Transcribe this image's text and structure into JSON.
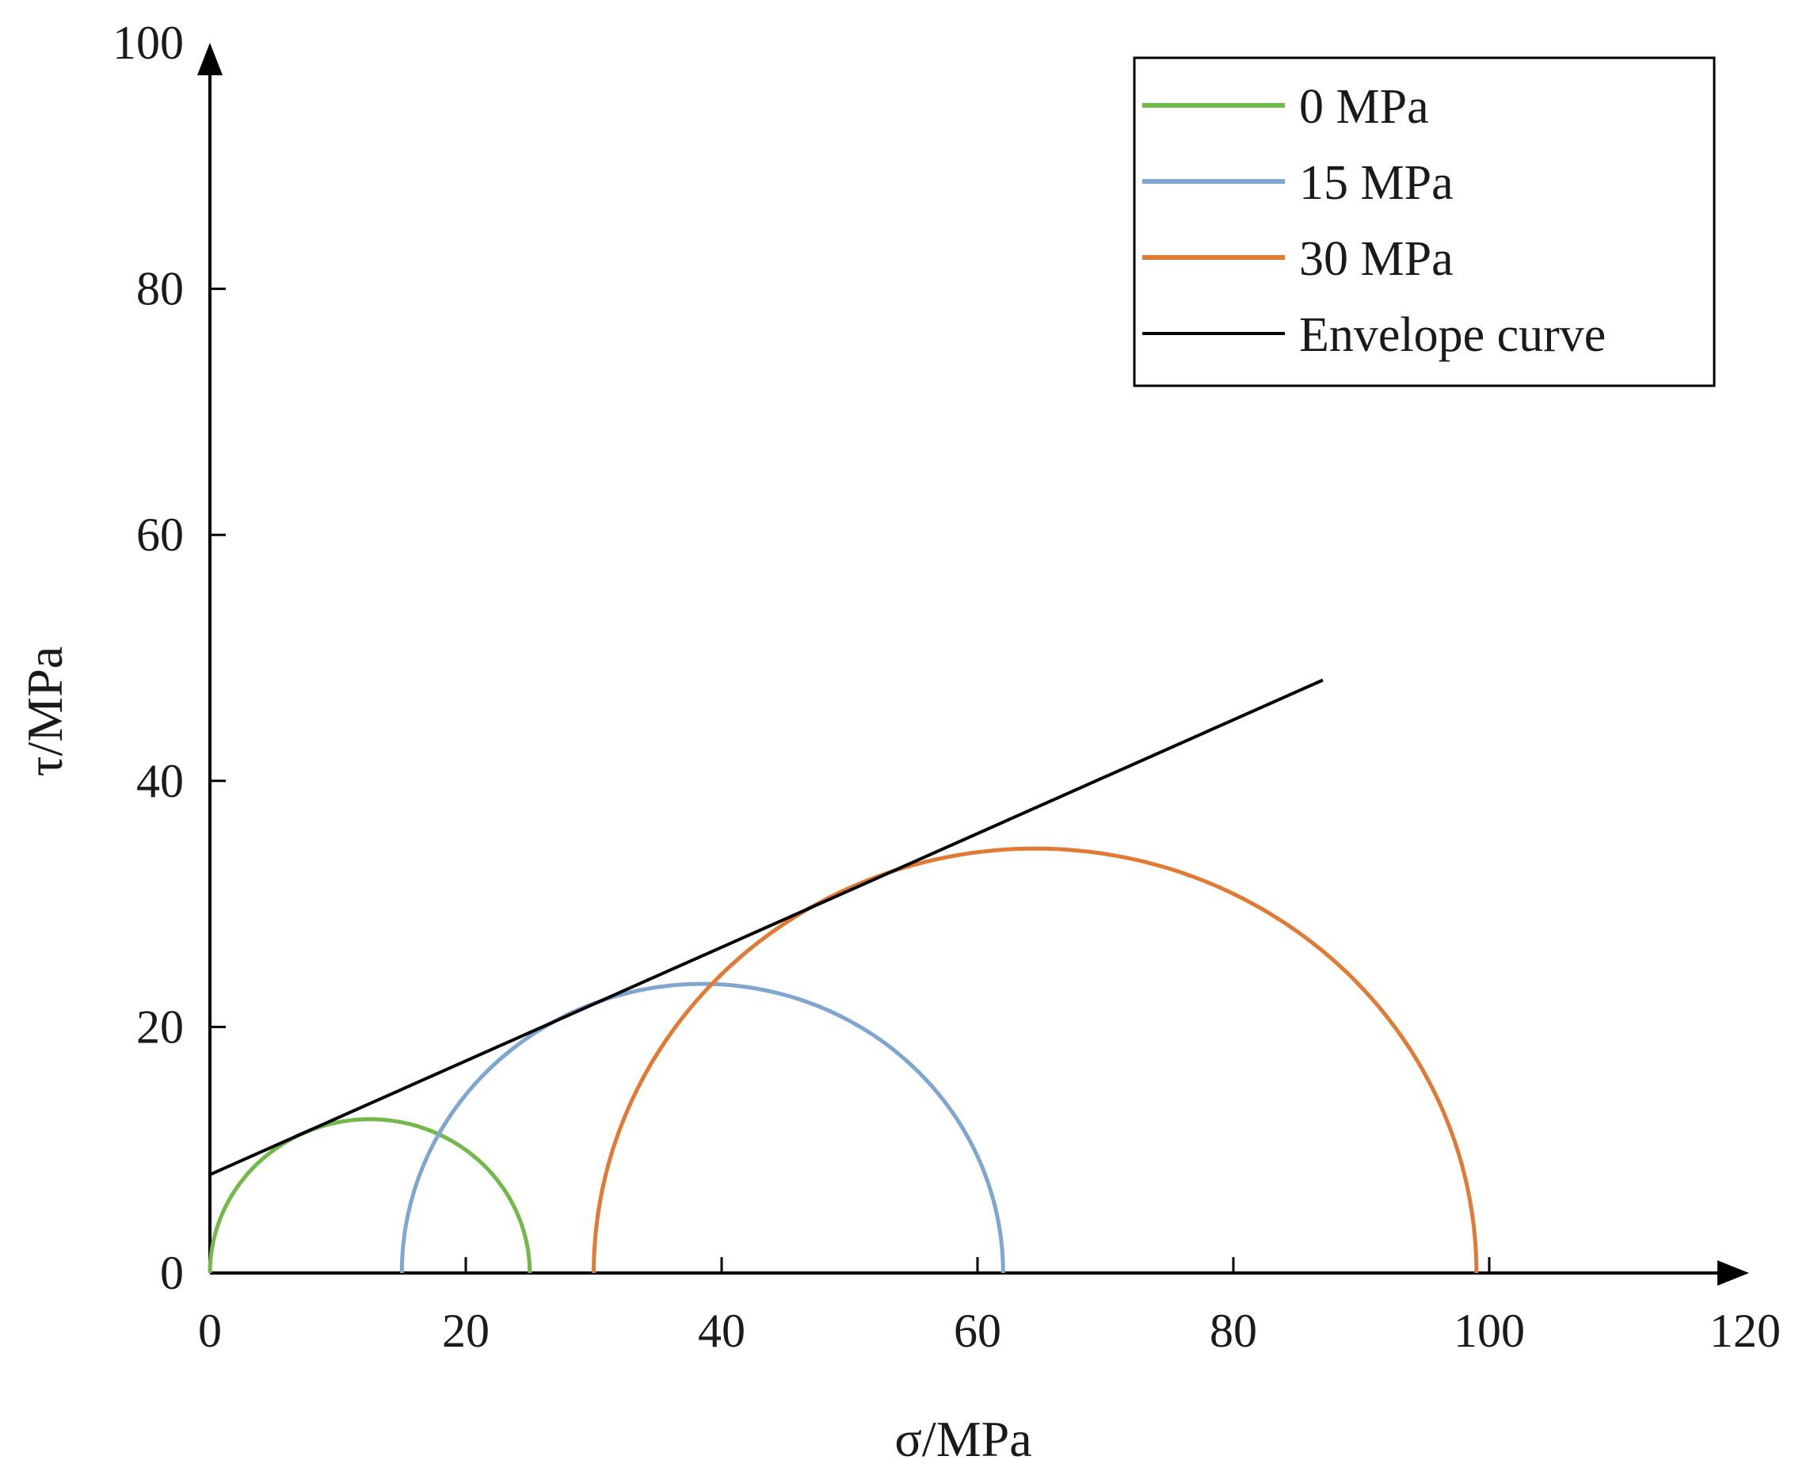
{
  "chart_data": {
    "type": "line",
    "title": "",
    "xlabel": "σ/MPa",
    "ylabel": "τ/MPa",
    "xlim": [
      0,
      120
    ],
    "ylim": [
      0,
      100
    ],
    "xticks": [
      "0",
      "20",
      "40",
      "60",
      "80",
      "100",
      "120"
    ],
    "yticks": [
      "0",
      "20",
      "40",
      "60",
      "80",
      "100"
    ],
    "grid": false,
    "legend_position": "top-right",
    "series": [
      {
        "name": "0 MPa",
        "kind": "mohr-circle",
        "sigma3": 0,
        "sigma1": 25,
        "color": "#72b84a"
      },
      {
        "name": "15 MPa",
        "kind": "mohr-circle",
        "sigma3": 15,
        "sigma1": 62,
        "color": "#7fa6cf"
      },
      {
        "name": "30 MPa",
        "kind": "mohr-circle",
        "sigma3": 30,
        "sigma1": 99,
        "color": "#e07a35"
      },
      {
        "name": "Envelope curve",
        "kind": "line",
        "x": [
          0,
          87
        ],
        "y": [
          8,
          48.2
        ],
        "color": "#000000"
      }
    ]
  }
}
